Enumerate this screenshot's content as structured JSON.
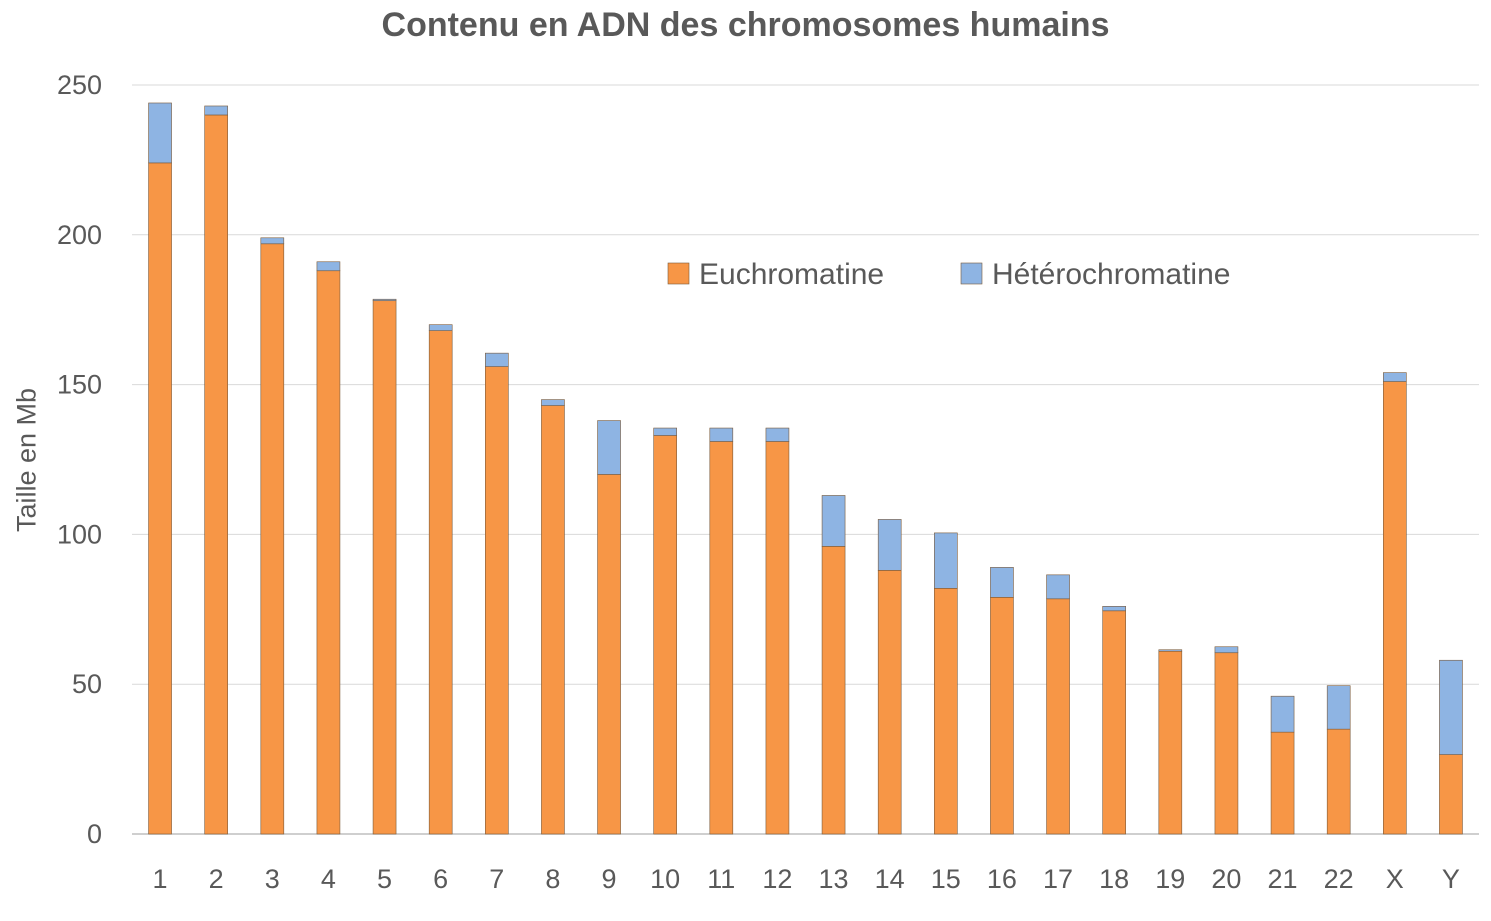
{
  "chart_data": {
    "type": "bar",
    "stacked": true,
    "title": "Contenu en ADN des chromosomes humains",
    "xlabel": "",
    "ylabel": "Taille en Mb",
    "ylim": [
      0,
      250
    ],
    "yticks": [
      0,
      50,
      100,
      150,
      200,
      250
    ],
    "grid": true,
    "legend_position": "top-right",
    "categories": [
      "1",
      "2",
      "3",
      "4",
      "5",
      "6",
      "7",
      "8",
      "9",
      "10",
      "11",
      "12",
      "13",
      "14",
      "15",
      "16",
      "17",
      "18",
      "19",
      "20",
      "21",
      "22",
      "X",
      "Y"
    ],
    "series": [
      {
        "name": "Euchromatine",
        "color": "#F79646",
        "values": [
          224,
          240,
          197,
          188,
          178,
          168,
          156,
          143,
          120,
          133,
          131,
          131,
          96,
          88,
          82,
          79,
          78.5,
          74.5,
          61,
          60.5,
          34,
          35,
          151,
          26.5
        ]
      },
      {
        "name": "Hétérochromatine",
        "color": "#8EB4E3",
        "values": [
          20,
          3,
          2,
          3,
          0.5,
          2,
          4.5,
          2,
          18,
          2.5,
          4.5,
          4.5,
          17,
          17,
          18.5,
          10,
          8,
          1.5,
          0.5,
          2,
          12,
          14.5,
          3,
          31.5
        ]
      }
    ]
  }
}
